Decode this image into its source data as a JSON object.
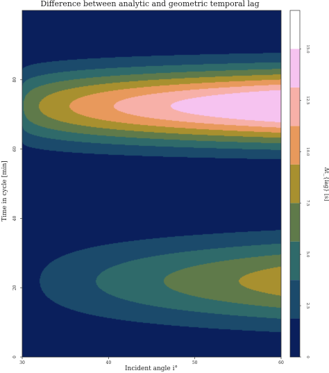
{
  "chart_data": {
    "type": "contour",
    "title": "Difference between analytic and geometric temporal lag",
    "xlabel": "Incident angle i°",
    "ylabel": "Time in cycle [min]",
    "colorbar_label": "Δt_{lag} [s]",
    "xlim": [
      30,
      60
    ],
    "ylim": [
      0,
      100
    ],
    "x_ticks": [
      "30",
      "40",
      "50",
      "60"
    ],
    "y_ticks": [
      "0",
      "20",
      "40",
      "60",
      "80"
    ],
    "colorbar_ticks": [
      "0",
      "2.5",
      "5.0",
      "7.5",
      "10.0",
      "12.5",
      "15.0"
    ],
    "levels": [
      0,
      1.875,
      3.75,
      5.625,
      7.5,
      9.375,
      11.25,
      13.125,
      15.0,
      16.875
    ],
    "colors": [
      "#0a1f5c",
      "#1b4a6b",
      "#2f6a6a",
      "#5f7a4a",
      "#a8902f",
      "#e8995c",
      "#f7b0a8",
      "#f6c3f0"
    ],
    "contour_model": {
      "upper_peak": {
        "time": 72.5,
        "max_value": 16.0
      },
      "lower_peak": {
        "time": 22.0,
        "max_value": 8.5
      }
    },
    "grid": false,
    "colorbar_position": "right"
  }
}
